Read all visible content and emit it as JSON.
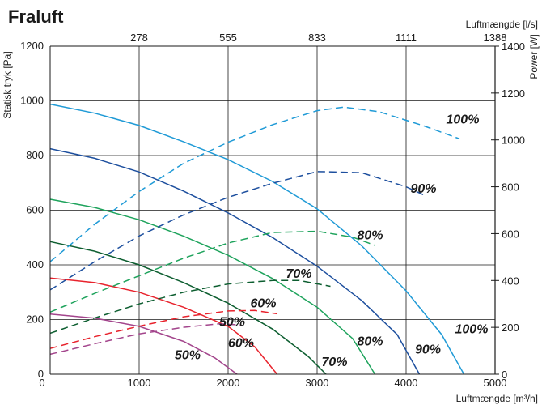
{
  "chart_data": {
    "type": "line",
    "title": "Fraluft",
    "xlabel": "Luftmængde [m³/h]",
    "xlabel_top": "Luftmængde [l/s]",
    "ylabel": "Statisk tryk [Pa]",
    "y2label": "Power [W]",
    "xlim": [
      0,
      5000
    ],
    "ylim": [
      0,
      1200
    ],
    "y2lim": [
      0,
      1400
    ],
    "grid": true,
    "x_ticks": [
      "0",
      "1000",
      "2000",
      "3000",
      "4000",
      "5000"
    ],
    "x_top_ticks": [
      {
        "at": 1000,
        "label": "278"
      },
      {
        "at": 2000,
        "label": "555"
      },
      {
        "at": 3000,
        "label": "833"
      },
      {
        "at": 4000,
        "label": "1111"
      },
      {
        "at": 5000,
        "label": "1388"
      }
    ],
    "y_ticks": [
      "0",
      "200",
      "400",
      "600",
      "800",
      "1000",
      "1200"
    ],
    "y2_ticks": [
      "0",
      "200",
      "400",
      "600",
      "800",
      "1000",
      "1200",
      "1400"
    ],
    "series": [
      {
        "group": "pressure",
        "label": "100%",
        "color": "#1f9ad6",
        "dash": false,
        "label_at": [
          4550,
          150
        ],
        "points": [
          [
            0,
            988
          ],
          [
            500,
            955
          ],
          [
            1000,
            910
          ],
          [
            1500,
            850
          ],
          [
            2000,
            785
          ],
          [
            2500,
            705
          ],
          [
            3000,
            605
          ],
          [
            3500,
            470
          ],
          [
            4000,
            305
          ],
          [
            4400,
            145
          ],
          [
            4650,
            0
          ]
        ]
      },
      {
        "group": "pressure",
        "label": "90%",
        "color": "#1d4f9e",
        "dash": false,
        "label_at": [
          4100,
          75
        ],
        "points": [
          [
            0,
            825
          ],
          [
            500,
            790
          ],
          [
            1000,
            740
          ],
          [
            1500,
            670
          ],
          [
            2000,
            590
          ],
          [
            2500,
            500
          ],
          [
            3000,
            395
          ],
          [
            3500,
            270
          ],
          [
            3900,
            145
          ],
          [
            4150,
            0
          ]
        ]
      },
      {
        "group": "pressure",
        "label": "80%",
        "color": "#1ea35c",
        "dash": false,
        "label_at": [
          3450,
          105
        ],
        "points": [
          [
            0,
            640
          ],
          [
            500,
            610
          ],
          [
            1000,
            565
          ],
          [
            1500,
            505
          ],
          [
            2000,
            435
          ],
          [
            2500,
            350
          ],
          [
            3000,
            245
          ],
          [
            3400,
            130
          ],
          [
            3650,
            0
          ]
        ]
      },
      {
        "group": "pressure",
        "label": "70%",
        "color": "#0d5e30",
        "dash": false,
        "label_at": [
          3050,
          30
        ],
        "points": [
          [
            0,
            485
          ],
          [
            500,
            450
          ],
          [
            1000,
            400
          ],
          [
            1500,
            335
          ],
          [
            2000,
            260
          ],
          [
            2500,
            165
          ],
          [
            2900,
            65
          ],
          [
            3100,
            0
          ]
        ]
      },
      {
        "group": "pressure",
        "label": "60%",
        "color": "#e8232d",
        "dash": false,
        "label_at": [
          2000,
          100
        ],
        "points": [
          [
            0,
            352
          ],
          [
            500,
            335
          ],
          [
            1000,
            300
          ],
          [
            1500,
            245
          ],
          [
            2000,
            175
          ],
          [
            2300,
            100
          ],
          [
            2550,
            0
          ]
        ]
      },
      {
        "group": "pressure",
        "label": "50%",
        "color": "#a3458c",
        "dash": false,
        "label_at": [
          1400,
          55
        ],
        "points": [
          [
            0,
            220
          ],
          [
            500,
            205
          ],
          [
            1000,
            175
          ],
          [
            1500,
            120
          ],
          [
            1850,
            60
          ],
          [
            2100,
            0
          ]
        ]
      },
      {
        "group": "power",
        "label": "100%",
        "color": "#1f9ad6",
        "dash": true,
        "label_at": [
          4450,
          1070
        ],
        "points": [
          [
            0,
            480
          ],
          [
            500,
            640
          ],
          [
            1000,
            780
          ],
          [
            1500,
            900
          ],
          [
            2000,
            990
          ],
          [
            2500,
            1065
          ],
          [
            3000,
            1125
          ],
          [
            3300,
            1140
          ],
          [
            3700,
            1120
          ],
          [
            4200,
            1060
          ],
          [
            4600,
            1005
          ]
        ]
      },
      {
        "group": "power",
        "label": "90%",
        "color": "#1d4f9e",
        "dash": true,
        "label_at": [
          4050,
          775
        ],
        "points": [
          [
            0,
            360
          ],
          [
            500,
            480
          ],
          [
            1000,
            590
          ],
          [
            1500,
            680
          ],
          [
            2000,
            755
          ],
          [
            2500,
            815
          ],
          [
            3000,
            865
          ],
          [
            3500,
            860
          ],
          [
            4000,
            800
          ],
          [
            4200,
            765
          ]
        ]
      },
      {
        "group": "power",
        "label": "80%",
        "color": "#1ea35c",
        "dash": true,
        "label_at": [
          3450,
          575
        ],
        "points": [
          [
            0,
            265
          ],
          [
            500,
            345
          ],
          [
            1000,
            420
          ],
          [
            1500,
            495
          ],
          [
            2000,
            560
          ],
          [
            2500,
            605
          ],
          [
            3000,
            610
          ],
          [
            3400,
            585
          ],
          [
            3650,
            550
          ]
        ]
      },
      {
        "group": "power",
        "label": "70%",
        "color": "#0d5e30",
        "dash": true,
        "label_at": [
          2650,
          412
        ],
        "points": [
          [
            0,
            175
          ],
          [
            500,
            240
          ],
          [
            1000,
            300
          ],
          [
            1500,
            350
          ],
          [
            2000,
            385
          ],
          [
            2500,
            400
          ],
          [
            2800,
            400
          ],
          [
            3150,
            375
          ]
        ]
      },
      {
        "group": "power",
        "label": "60%",
        "color": "#e8232d",
        "dash": true,
        "label_at": [
          2250,
          285
        ],
        "points": [
          [
            0,
            110
          ],
          [
            500,
            160
          ],
          [
            1000,
            205
          ],
          [
            1500,
            245
          ],
          [
            2000,
            270
          ],
          [
            2300,
            272
          ],
          [
            2550,
            258
          ]
        ]
      },
      {
        "group": "power",
        "label": "50%",
        "color": "#a3458c",
        "dash": true,
        "label_at": [
          1900,
          205
        ],
        "points": [
          [
            0,
            85
          ],
          [
            500,
            130
          ],
          [
            1000,
            172
          ],
          [
            1500,
            200
          ],
          [
            1900,
            215
          ],
          [
            2150,
            210
          ]
        ]
      }
    ]
  }
}
